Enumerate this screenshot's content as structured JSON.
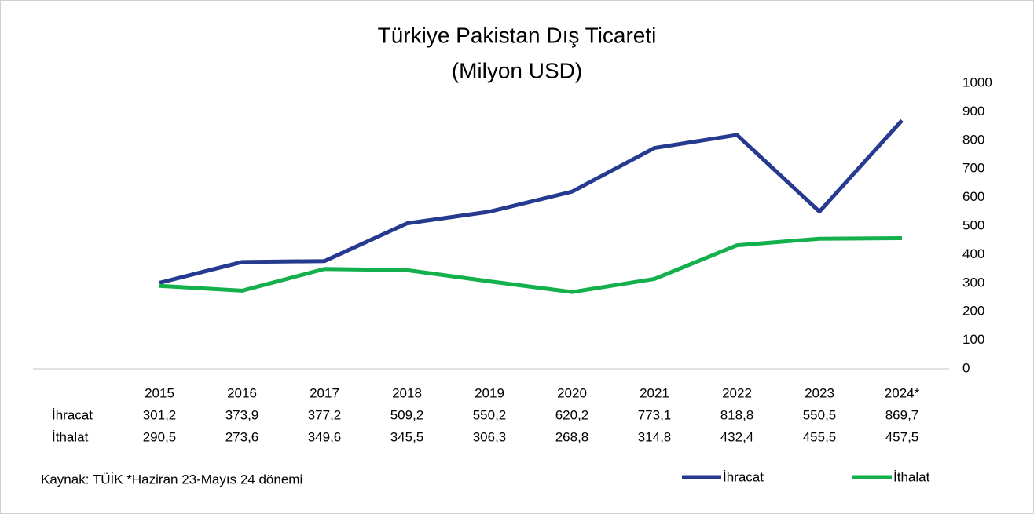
{
  "chart_data": {
    "type": "line",
    "title": "Türkiye Pakistan Dış Ticareti",
    "subtitle": "(Milyon USD)",
    "categories": [
      "2015",
      "2016",
      "2017",
      "2018",
      "2019",
      "2020",
      "2021",
      "2022",
      "2023",
      "2024*"
    ],
    "series": [
      {
        "name": "İhracat",
        "color": "#263a8f",
        "values": [
          301.2,
          373.9,
          377.2,
          509.2,
          550.2,
          620.2,
          773.1,
          818.8,
          550.5,
          869.7
        ],
        "value_labels": [
          "301,2",
          "373,9",
          "377,2",
          "509,2",
          "550,2",
          "620,2",
          "773,1",
          "818,8",
          "550,5",
          "869,7"
        ]
      },
      {
        "name": "İthalat",
        "color": "#14b04c",
        "values": [
          290.5,
          273.6,
          349.6,
          345.5,
          306.3,
          268.8,
          314.8,
          432.4,
          455.5,
          457.5
        ],
        "value_labels": [
          "290,5",
          "273,6",
          "349,6",
          "345,5",
          "306,3",
          "268,8",
          "314,8",
          "432,4",
          "455,5",
          "457,5"
        ]
      }
    ],
    "ylim": [
      0,
      1000
    ],
    "yticks": [
      0,
      100,
      200,
      300,
      400,
      500,
      600,
      700,
      800,
      900,
      1000
    ],
    "y_axis_side": "right",
    "grid": false,
    "legend": "bottom-right",
    "note": "Kaynak: TÜİK *Haziran 23-Mayıs 24 dönemi"
  }
}
